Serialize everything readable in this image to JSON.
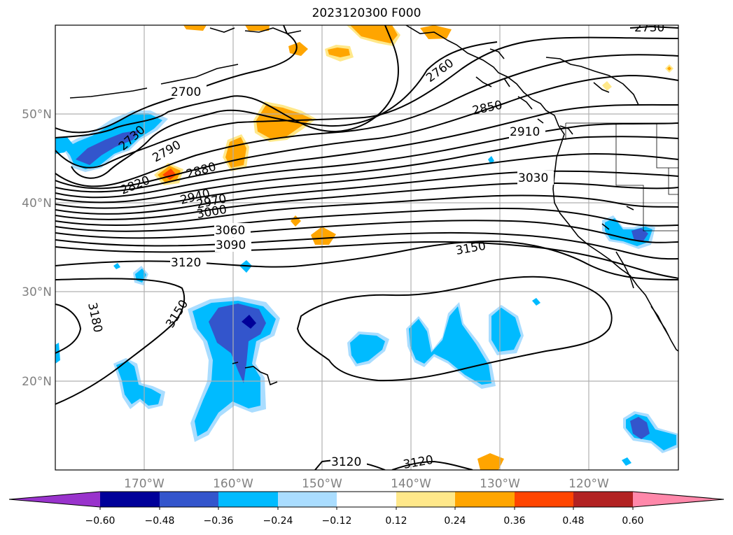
{
  "title": "2023120300 F000",
  "map": {
    "lat_labels": [
      "50°N",
      "40°N",
      "30°N",
      "20°N"
    ],
    "lon_labels": [
      "170°W",
      "160°W",
      "150°W",
      "140°W",
      "130°W",
      "120°W"
    ]
  },
  "contour_labels": [
    "2700",
    "2730",
    "2790",
    "2820",
    "2880",
    "2760",
    "2850",
    "2910",
    "3030",
    "2940",
    "2970",
    "3000",
    "3060",
    "3090",
    "3120",
    "3150",
    "3180",
    "3150",
    "3120",
    "3120",
    "2730"
  ],
  "colorbar": {
    "colors": [
      "#9933cc",
      "#000099",
      "#3355cc",
      "#00bbff",
      "#aaddff",
      "#ffffff",
      "#ffe88a",
      "#ffa500",
      "#ff4500",
      "#b22222",
      "#ff88aa"
    ],
    "tick_labels": [
      "−0.60",
      "−0.48",
      "−0.36",
      "−0.24",
      "−0.12",
      "0.12",
      "0.24",
      "0.36",
      "0.48",
      "0.60"
    ]
  }
}
